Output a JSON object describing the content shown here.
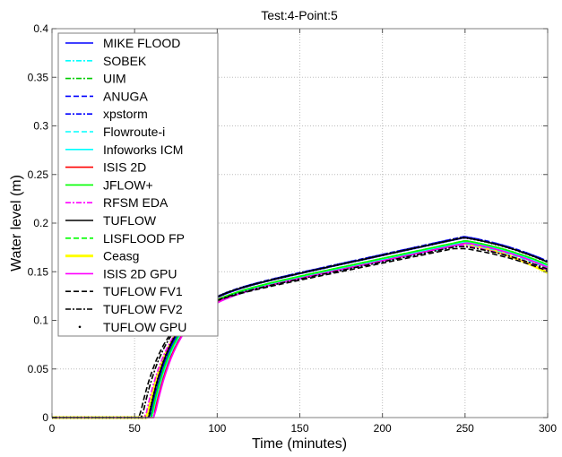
{
  "chart_data": {
    "type": "line",
    "title": "Test:4-Point:5",
    "xlabel": "Time (minutes)",
    "ylabel": "Water level (m)",
    "xlim": [
      0,
      300
    ],
    "ylim": [
      0,
      0.4
    ],
    "xticks": [
      0,
      50,
      100,
      150,
      200,
      250,
      300
    ],
    "xtick_labels": [
      "0",
      "50",
      "100",
      "150",
      "200",
      "250",
      "300"
    ],
    "yticks": [
      0,
      0.05,
      0.1,
      0.15,
      0.2,
      0.25,
      0.3,
      0.35,
      0.4
    ],
    "ytick_labels": [
      "0",
      "0.05",
      "0.1",
      "0.15",
      "0.2",
      "0.25",
      "0.3",
      "0.35",
      "0.4"
    ],
    "grid": true,
    "legend_position": "upper left",
    "x": [
      0,
      50,
      53,
      55,
      57,
      59,
      60,
      61,
      62,
      63,
      65,
      70,
      75,
      80,
      90,
      100,
      125,
      150,
      175,
      200,
      225,
      250,
      260,
      275,
      300
    ],
    "series": [
      {
        "name": "MIKE FLOOD",
        "color": "#0000ff",
        "style": "solid",
        "onset": 59.5,
        "peak": 0.181,
        "offset": 0.0
      },
      {
        "name": "SOBEK",
        "color": "#00ffff",
        "style": "dashdot",
        "onset": 61.5,
        "peak": 0.176,
        "offset": -0.006
      },
      {
        "name": "UIM",
        "color": "#00cc00",
        "style": "dashdot",
        "onset": 60.5,
        "peak": 0.178,
        "offset": -0.003
      },
      {
        "name": "ANUGA",
        "color": "#0000ff",
        "style": "dashed",
        "onset": 59.0,
        "peak": 0.182,
        "offset": 0.001
      },
      {
        "name": "xpstorm",
        "color": "#0000ff",
        "style": "dashdot",
        "onset": 59.0,
        "peak": 0.182,
        "offset": 0.001
      },
      {
        "name": "Flowroute-i",
        "color": "#00ffff",
        "style": "dashed",
        "onset": 61.0,
        "peak": 0.175,
        "offset": -0.007
      },
      {
        "name": "Infoworks ICM",
        "color": "#00ffff",
        "style": "solid",
        "onset": 60.5,
        "peak": 0.177,
        "offset": -0.005
      },
      {
        "name": "ISIS 2D",
        "color": "#ff0000",
        "style": "solid",
        "onset": 61.5,
        "peak": 0.176,
        "offset": -0.006
      },
      {
        "name": "JFLOW+",
        "color": "#00ff00",
        "style": "solid",
        "onset": 60.0,
        "peak": 0.178,
        "offset": -0.003
      },
      {
        "name": "RFSM EDA",
        "color": "#ff00ff",
        "style": "dashdot",
        "onset": 56.5,
        "peak": 0.173,
        "offset": -0.009
      },
      {
        "name": "TUFLOW",
        "color": "#000000",
        "style": "solid",
        "onset": 58.5,
        "peak": 0.181,
        "offset": 0.0
      },
      {
        "name": "LISFLOOD FP",
        "color": "#00ff00",
        "style": "dashed",
        "onset": 60.0,
        "peak": 0.178,
        "offset": -0.003
      },
      {
        "name": "Ceasg",
        "color": "#ffff00",
        "style": "solid-thick",
        "onset": 57.5,
        "peak": 0.175,
        "offset": -0.012
      },
      {
        "name": "ISIS 2D GPU",
        "color": "#ff00ff",
        "style": "solid",
        "onset": 62.0,
        "peak": 0.176,
        "offset": -0.006
      },
      {
        "name": "TUFLOW FV1",
        "color": "#000000",
        "style": "dashed",
        "onset": 53.0,
        "peak": 0.17,
        "offset": -0.01
      },
      {
        "name": "TUFLOW FV2",
        "color": "#000000",
        "style": "dashdot",
        "onset": 54.5,
        "peak": 0.172,
        "offset": -0.008
      },
      {
        "name": "TUFLOW GPU",
        "color": "#000000",
        "style": "dotted",
        "onset": 58.5,
        "peak": 0.181,
        "offset": 0.0
      }
    ],
    "envelope": {
      "description": "All models rise sharply between t≈53-62 min, then follow similar rising curves peaking near t≈250 min and falling toward t=300.",
      "upper": {
        "x": [
          60,
          70,
          80,
          100,
          150,
          200,
          250,
          300
        ],
        "y": [
          0.0,
          0.085,
          0.115,
          0.144,
          0.166,
          0.176,
          0.182,
          0.156
        ]
      },
      "lower": {
        "x": [
          62,
          70,
          80,
          100,
          150,
          200,
          250,
          300
        ],
        "y": [
          0.0,
          0.07,
          0.105,
          0.13,
          0.153,
          0.163,
          0.17,
          0.147
        ]
      }
    }
  }
}
